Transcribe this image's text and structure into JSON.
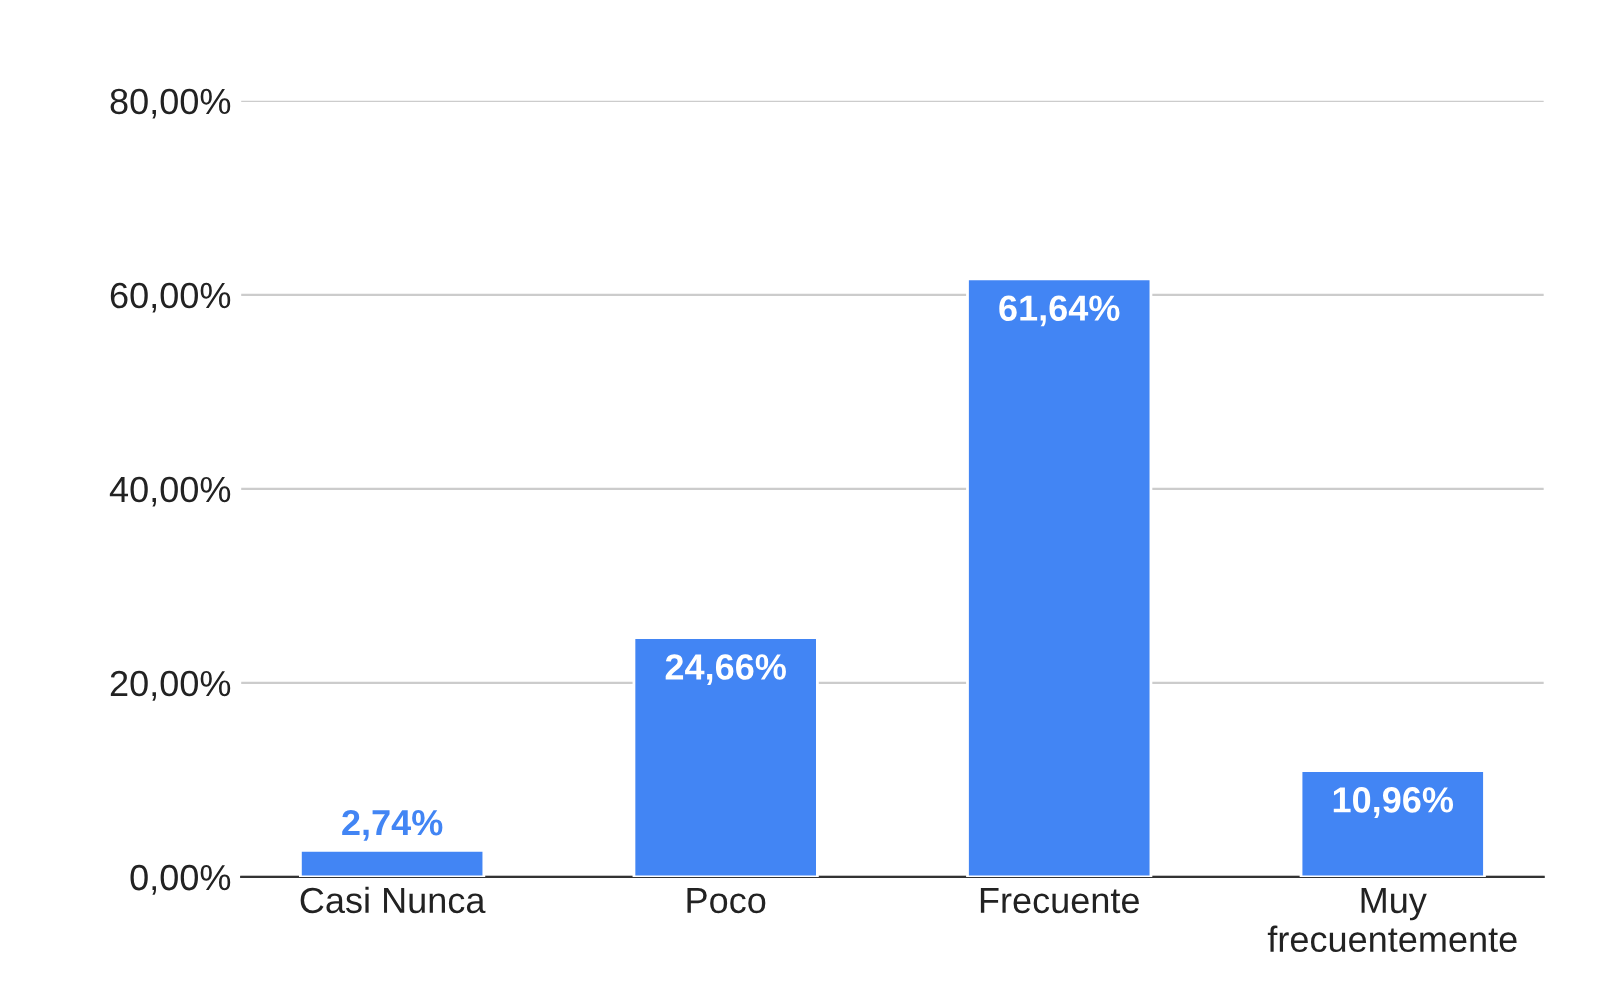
{
  "chart_data": {
    "type": "bar",
    "categories": [
      "Casi Nunca",
      "Poco",
      "Frecuente",
      "Muy\nfrecuentemente"
    ],
    "values": [
      2.74,
      24.66,
      61.64,
      10.96
    ],
    "value_labels": [
      "2,74%",
      "24,66%",
      "61,64%",
      "10,96%"
    ],
    "color": "#4285f4",
    "ylim": [
      0,
      80
    ],
    "yticks": [
      {
        "value": 0,
        "label": "0,00%"
      },
      {
        "value": 20,
        "label": "20,00%"
      },
      {
        "value": 40,
        "label": "40,00%"
      },
      {
        "value": 60,
        "label": "60,00%"
      },
      {
        "value": 80,
        "label": "80,00%"
      }
    ],
    "grid": "y",
    "legend": false
  }
}
